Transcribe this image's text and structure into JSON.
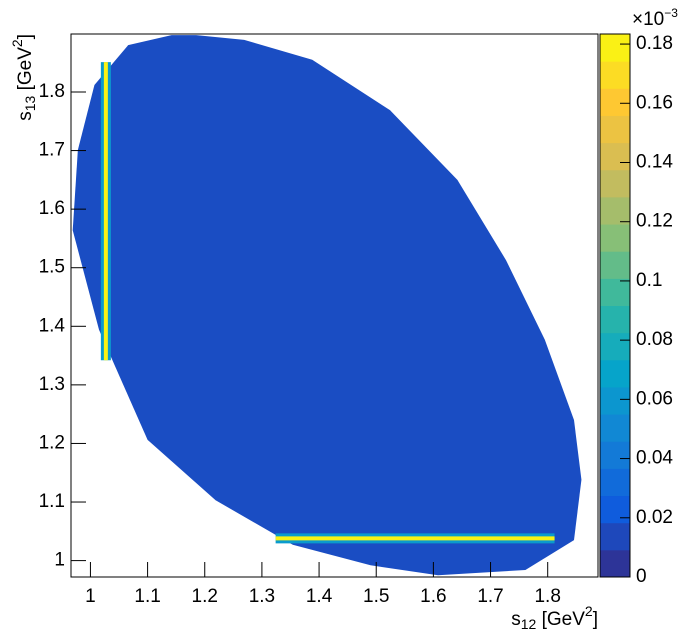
{
  "chart_data": {
    "type": "dalitz",
    "xlabel": [
      "s",
      "12",
      " [GeV",
      "2",
      "]"
    ],
    "ylabel": [
      "s",
      "13",
      " [GeV",
      "2",
      "]"
    ],
    "xlim": [
      0.966,
      1.888
    ],
    "ylim": [
      0.972,
      1.899
    ],
    "xticks": [
      1,
      1.1,
      1.2,
      1.3,
      1.4,
      1.5,
      1.6,
      1.7,
      1.8
    ],
    "yticks": [
      1,
      1.1,
      1.2,
      1.3,
      1.4,
      1.5,
      1.6,
      1.7,
      1.8
    ],
    "zlim": [
      0,
      0.1834
    ],
    "zticks": [
      0,
      0.02,
      0.04,
      0.06,
      0.08,
      0.1,
      0.12,
      0.14,
      0.16,
      0.18
    ],
    "zmultiplier": [
      "×10",
      "−3"
    ],
    "palette": [
      "#352a87",
      "#0f5cdd",
      "#1481d6",
      "#06a4ca",
      "#2eb7a4",
      "#87bf77",
      "#d1bb59",
      "#fec832",
      "#f9fb0e"
    ],
    "regions": [
      {
        "x": [
          1.142,
          1.185,
          1.269,
          1.388,
          1.524,
          1.642,
          1.727,
          1.795,
          1.846,
          1.859,
          1.846,
          1.761,
          1.608,
          1.49,
          1.354,
          1.219,
          1.1,
          1.015,
          0.969,
          0.978,
          1.007,
          1.066
        ],
        "y": [
          1.897,
          1.897,
          1.889,
          1.855,
          1.769,
          1.65,
          1.513,
          1.377,
          1.24,
          1.138,
          1.035,
          0.984,
          0.975,
          0.992,
          1.027,
          1.103,
          1.206,
          1.394,
          1.564,
          1.701,
          1.812,
          1.88
        ],
        "value": 0.016
      }
    ],
    "bands": [
      {
        "x": [
          1.027,
          1.027
        ],
        "y": [
          1.342,
          1.851
        ],
        "value": 0.18
      },
      {
        "x": [
          1.324,
          1.812
        ],
        "y": [
          1.038,
          1.038
        ],
        "value": 0.18
      }
    ]
  }
}
